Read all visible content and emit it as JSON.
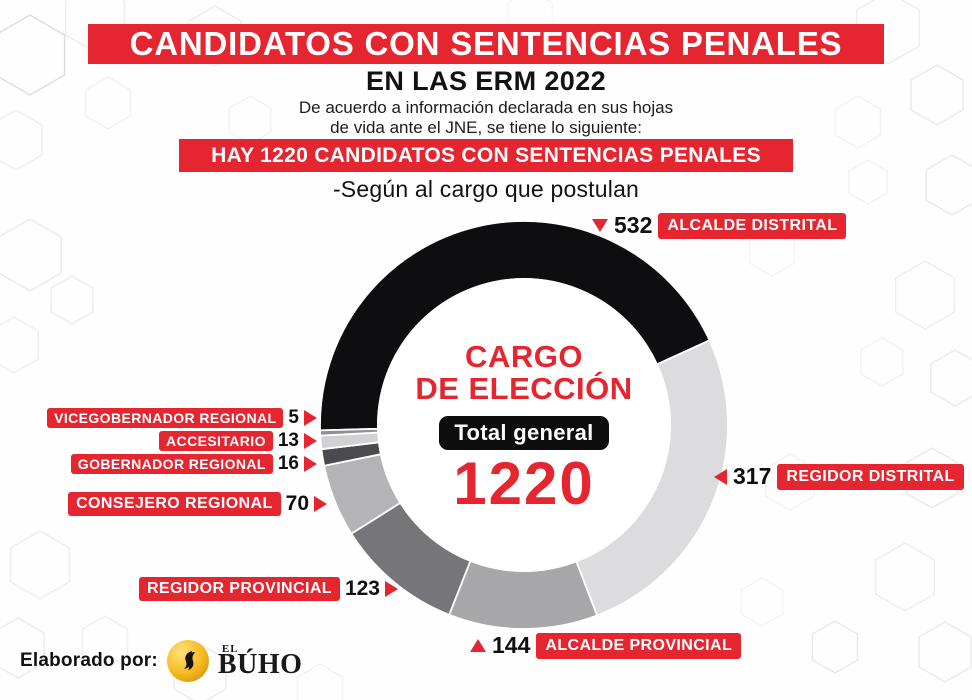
{
  "colors": {
    "accent_red": "#e52630",
    "ink_black": "#121212",
    "donut_black": "#0e0e10",
    "logo_gold": "#f5b71e"
  },
  "header": {
    "title": "CANDIDATOS CON SENTENCIAS PENALES",
    "subtitle": "EN LAS ERM 2022",
    "intro_line1": "De acuerdo a información declarada en sus hojas",
    "intro_line2": "de vida ante el JNE, se tiene lo siguiente:",
    "highlight": "HAY 1220 CANDIDATOS CON SENTENCIAS PENALES",
    "tagline": "-Según al cargo que postulan"
  },
  "chart_data": {
    "type": "pie",
    "style": "donut",
    "title": "CARGO DE ELECCIÓN",
    "title_line1": "CARGO",
    "title_line2": "DE ELECCIÓN",
    "center_badge": "Total general",
    "total": "1220",
    "start_angle_deg": 268.5,
    "legend_position": "callouts-around-donut",
    "segments": [
      {
        "label": "ALCALDE DISTRITAL",
        "value": 532,
        "color": "#0e0e10"
      },
      {
        "label": "REGIDOR DISTRITAL",
        "value": 317,
        "color": "#dcdcde"
      },
      {
        "label": "ALCALDE PROVINCIAL",
        "value": 144,
        "color": "#a7a7aa"
      },
      {
        "label": "REGIDOR PROVINCIAL",
        "value": 123,
        "color": "#76767a"
      },
      {
        "label": "CONSEJERO REGIONAL",
        "value": 70,
        "color": "#b4b4b7"
      },
      {
        "label": "GOBERNADOR REGIONAL",
        "value": 16,
        "color": "#4b4b4f"
      },
      {
        "label": "ACCESITARIO",
        "value": 13,
        "color": "#d1d1d3"
      },
      {
        "label": "VICEGOBERNADOR REGIONAL",
        "value": 5,
        "color": "#909094"
      }
    ]
  },
  "footer": {
    "credit": "Elaborado por:",
    "logo_top": "EL",
    "logo_main": "BÚHO"
  }
}
